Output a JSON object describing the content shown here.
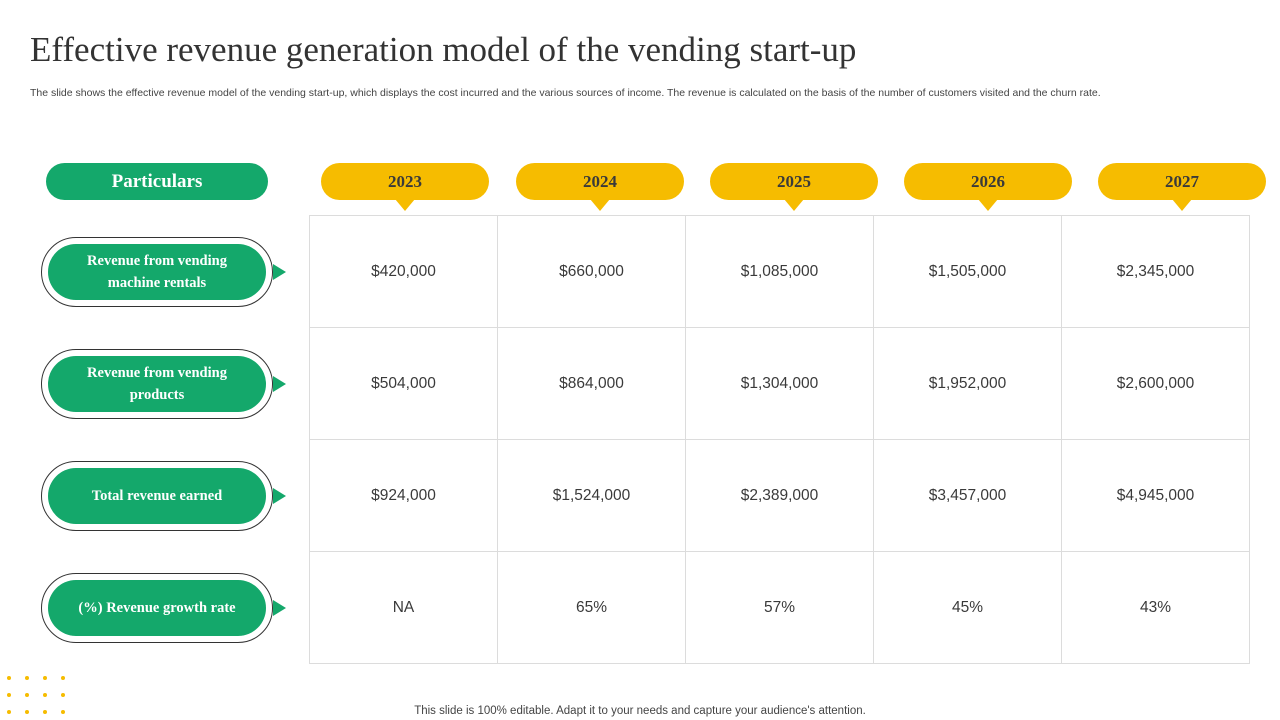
{
  "title": "Effective revenue generation model of the vending start-up",
  "subtitle": "The slide shows the effective revenue model of the vending start-up, which displays the cost incurred and the various sources of income. The revenue is calculated on the basis of the number of customers visited and the churn rate.",
  "header": {
    "particulars": "Particulars"
  },
  "years": [
    "2023",
    "2024",
    "2025",
    "2026",
    "2027"
  ],
  "rows": [
    {
      "label": "Revenue from vending machine rentals",
      "values": [
        "$420,000",
        "$660,000",
        "$1,085,000",
        "$1,505,000",
        "$2,345,000"
      ]
    },
    {
      "label": "Revenue from vending products",
      "values": [
        "$504,000",
        "$864,000",
        "$1,304,000",
        "$1,952,000",
        "$2,600,000"
      ]
    },
    {
      "label": "Total revenue earned",
      "values": [
        "$924,000",
        "$1,524,000",
        "$2,389,000",
        "$3,457,000",
        "$4,945,000"
      ]
    },
    {
      "label": "(%) Revenue growth rate",
      "values": [
        "NA",
        "65%",
        "57%",
        "45%",
        "43%"
      ]
    }
  ],
  "footer": "This slide is 100% editable. Adapt it to your needs and capture your audience's attention.",
  "colors": {
    "green": "#14a86b",
    "yellow": "#f6bc00"
  }
}
